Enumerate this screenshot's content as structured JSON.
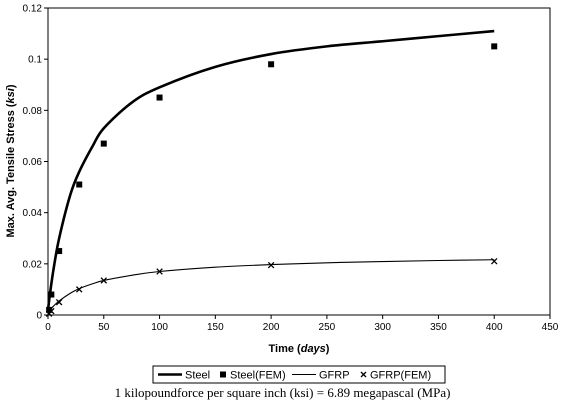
{
  "chart_data": {
    "type": "line",
    "xlabel": "Time (days)",
    "xlabel_prefix": "Time (",
    "xlabel_unit": "days",
    "xlabel_suffix": ")",
    "ylabel_prefix": "Max. Avg. Tensile Stress (",
    "ylabel_unit": "ksi",
    "ylabel_suffix": ")",
    "xlim": [
      0,
      450
    ],
    "ylim": [
      0,
      0.12
    ],
    "x_ticks": [
      "0",
      "50",
      "100",
      "150",
      "200",
      "250",
      "300",
      "350",
      "400",
      "450"
    ],
    "y_ticks": [
      "0",
      "0.02",
      "0.04",
      "0.06",
      "0.08",
      "0.1",
      "0.12"
    ],
    "grid": false,
    "legend_position": "bottom",
    "series": [
      {
        "name": "Steel",
        "style": "line",
        "line_width": "thick",
        "x": [
          0,
          2,
          5,
          10,
          20,
          28,
          40,
          50,
          75,
          100,
          150,
          200,
          250,
          300,
          350,
          400
        ],
        "y": [
          0.002,
          0.009,
          0.018,
          0.03,
          0.047,
          0.056,
          0.066,
          0.073,
          0.083,
          0.089,
          0.097,
          0.102,
          0.105,
          0.107,
          0.109,
          0.111
        ]
      },
      {
        "name": "Steel(FEM)",
        "style": "square-marker",
        "x": [
          1,
          3,
          10,
          28,
          50,
          100,
          200,
          400
        ],
        "y": [
          0.002,
          0.008,
          0.025,
          0.051,
          0.067,
          0.085,
          0.098,
          0.105
        ]
      },
      {
        "name": "GFRP",
        "style": "line",
        "line_width": "thin",
        "x": [
          0,
          2,
          5,
          10,
          20,
          28,
          40,
          50,
          75,
          100,
          150,
          200,
          250,
          300,
          350,
          400
        ],
        "y": [
          0.0005,
          0.002,
          0.0035,
          0.0055,
          0.0085,
          0.0103,
          0.0122,
          0.0135,
          0.0155,
          0.017,
          0.0187,
          0.0197,
          0.0204,
          0.0209,
          0.0213,
          0.0216
        ]
      },
      {
        "name": "GFRP(FEM)",
        "style": "x-marker",
        "x": [
          1,
          3,
          10,
          28,
          50,
          100,
          200,
          400
        ],
        "y": [
          0.0005,
          0.0015,
          0.005,
          0.01,
          0.0135,
          0.017,
          0.0195,
          0.021
        ]
      }
    ]
  },
  "caption": "1 kilopoundforce per square inch (ksi) = 6.89 megapascal (MPa)"
}
